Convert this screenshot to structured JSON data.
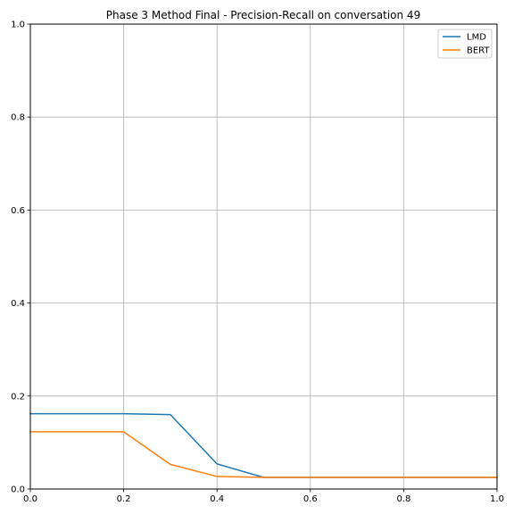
{
  "chart_data": {
    "type": "line",
    "title": "Phase 3 Method Final - Precision-Recall on conversation 49",
    "xlabel": "",
    "ylabel": "",
    "xlim": [
      0,
      1
    ],
    "ylim": [
      0,
      1
    ],
    "xticks": [
      "0.0",
      "0.2",
      "0.4",
      "0.6",
      "0.8",
      "1.0"
    ],
    "yticks": [
      "0.0",
      "0.2",
      "0.4",
      "0.6",
      "0.8",
      "1.0"
    ],
    "grid": true,
    "legend_position": "top-right",
    "x": [
      0.0,
      0.1,
      0.2,
      0.3,
      0.4,
      0.5,
      0.6,
      0.7,
      0.8,
      0.9,
      1.0
    ],
    "series": [
      {
        "name": "LMD",
        "color": "#1f77b4",
        "values": [
          0.162,
          0.162,
          0.162,
          0.16,
          0.054,
          0.025,
          0.025,
          0.025,
          0.025,
          0.025,
          0.025
        ]
      },
      {
        "name": "BERT",
        "color": "#ff7f0e",
        "values": [
          0.123,
          0.123,
          0.123,
          0.053,
          0.027,
          0.025,
          0.025,
          0.025,
          0.025,
          0.025,
          0.025
        ]
      }
    ]
  }
}
